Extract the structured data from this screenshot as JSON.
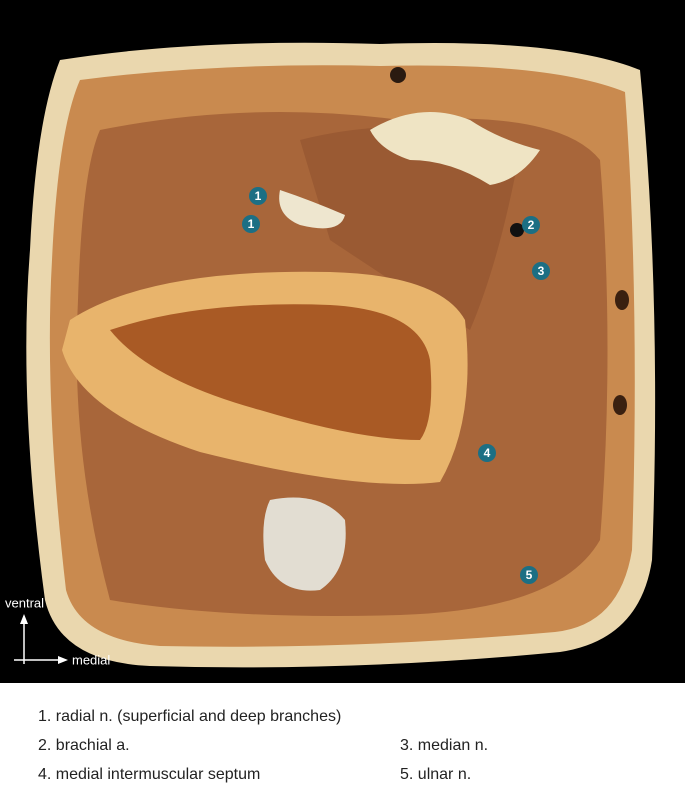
{
  "image": {
    "markers": [
      {
        "label": "1"
      },
      {
        "label": "1"
      },
      {
        "label": "2"
      },
      {
        "label": "3"
      },
      {
        "label": "4"
      },
      {
        "label": "5"
      }
    ],
    "orientation": {
      "vertical": "ventral",
      "horizontal": "medial"
    }
  },
  "legend": {
    "items": [
      "1. radial n. (superficial and deep branches)",
      "2. brachial a.",
      "3. median n.",
      "4. medial intermuscular septum",
      "5. ulnar n."
    ]
  }
}
